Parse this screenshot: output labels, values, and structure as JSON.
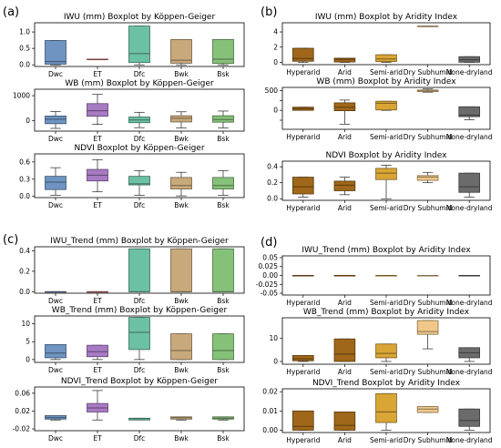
{
  "panel_labels": [
    "(a)",
    "(b)",
    "(c)",
    "(d)"
  ],
  "chart_data": [
    {
      "type": "box",
      "panel": "a",
      "title": "IWU (mm) Boxplot by Köppen-Geiger",
      "categories": [
        "Dwc",
        "ET",
        "Dfc",
        "Bwk",
        "Bsk"
      ],
      "colors": [
        "#6f94c1",
        "#e07272",
        "#6cc0a4",
        "#c8a97c",
        "#86c17a"
      ],
      "ylim": [
        -0.05,
        1.28
      ],
      "yticks": [
        0.0,
        0.5,
        1.0
      ],
      "tick_labels": [
        "0.0",
        "0.5",
        "1.0"
      ],
      "boxes": [
        {
          "min": 0,
          "q1": 0.02,
          "median": 0.1,
          "q3": 0.74,
          "max": 0.74
        },
        {
          "min": 0.17,
          "q1": 0.17,
          "median": 0.17,
          "q3": 0.17,
          "max": 0.17
        },
        {
          "min": 0,
          "q1": 0.07,
          "median": 0.34,
          "q3": 1.18,
          "max": 1.18
        },
        {
          "min": 0,
          "q1": 0.05,
          "median": 0.14,
          "q3": 0.77,
          "max": 0.77
        },
        {
          "min": 0,
          "q1": 0.04,
          "median": 0.17,
          "q3": 0.77,
          "max": 0.77
        }
      ]
    },
    {
      "type": "box",
      "panel": "a",
      "title": "WB (mm) Boxplot by Köppen-Geiger",
      "categories": [
        "Dwc",
        "ET",
        "Dfc",
        "Bwk",
        "Bsk"
      ],
      "colors": [
        "#6f94c1",
        "#a87ac4",
        "#6cc0a4",
        "#c8a97c",
        "#86c17a"
      ],
      "ylim": [
        -430,
        1260
      ],
      "yticks": [
        0,
        1000
      ],
      "tick_labels": [
        "0",
        "1000"
      ],
      "boxes": [
        {
          "min": -320,
          "q1": -130,
          "median": 50,
          "q3": 180,
          "max": 360
        },
        {
          "min": -160,
          "q1": 170,
          "median": 390,
          "q3": 680,
          "max": 1050
        },
        {
          "min": -290,
          "q1": -90,
          "median": 20,
          "q3": 140,
          "max": 330
        },
        {
          "min": -300,
          "q1": -60,
          "median": 90,
          "q3": 190,
          "max": 350
        },
        {
          "min": -300,
          "q1": -70,
          "median": 40,
          "q3": 190,
          "max": 380
        }
      ]
    },
    {
      "type": "box",
      "panel": "a",
      "title": "NDVI Boxplot by Köppen-Geiger",
      "categories": [
        "Dwc",
        "ET",
        "Dfc",
        "Bwk",
        "Bsk"
      ],
      "colors": [
        "#6f94c1",
        "#a87ac4",
        "#6cc0a4",
        "#c8a97c",
        "#86c17a"
      ],
      "ylim": [
        -0.02,
        0.74
      ],
      "yticks": [
        0.0,
        0.3,
        0.6
      ],
      "tick_labels": [
        "0.0",
        "0.3",
        "0.6"
      ],
      "boxes": [
        {
          "min": 0.02,
          "q1": 0.12,
          "median": 0.25,
          "q3": 0.35,
          "max": 0.5
        },
        {
          "min": 0.08,
          "q1": 0.27,
          "median": 0.37,
          "q3": 0.47,
          "max": 0.64
        },
        {
          "min": 0.02,
          "q1": 0.2,
          "median": 0.22,
          "q3": 0.35,
          "max": 0.45
        },
        {
          "min": 0.01,
          "q1": 0.13,
          "median": 0.19,
          "q3": 0.33,
          "max": 0.42
        },
        {
          "min": 0.02,
          "q1": 0.13,
          "median": 0.19,
          "q3": 0.33,
          "max": 0.45
        }
      ]
    },
    {
      "type": "box",
      "panel": "b",
      "title": "IWU (mm) Boxplot by Aridity Index",
      "categories": [
        "Hyperarid",
        "Arid",
        "Semi-arid",
        "Dry Subhumid",
        "None-dryland"
      ],
      "colors": [
        "#a0671a",
        "#a0671a",
        "#d9a535",
        "#f0c98a",
        "#6b6b6b"
      ],
      "ylim": [
        -0.3,
        5.2
      ],
      "yticks": [
        0,
        2,
        4
      ],
      "tick_labels": [
        "0",
        "2",
        "4"
      ],
      "boxes": [
        {
          "min": 0,
          "q1": 0.15,
          "median": 0.5,
          "q3": 1.85,
          "max": 1.85
        },
        {
          "min": 0,
          "q1": 0.05,
          "median": 0.4,
          "q3": 0.55,
          "max": 0.55
        },
        {
          "min": 0,
          "q1": 0.1,
          "median": 0.45,
          "q3": 1.0,
          "max": 1.0
        },
        {
          "min": 4.75,
          "q1": 4.75,
          "median": 4.75,
          "q3": 4.75,
          "max": 4.75
        },
        {
          "min": 0,
          "q1": 0.02,
          "median": 0.35,
          "q3": 0.75,
          "max": 0.75
        }
      ]
    },
    {
      "type": "box",
      "panel": "b",
      "title": "WB (mm) Boxplot by Aridity Index",
      "categories": [
        "Hyperarid",
        "Arid",
        "Semi-arid",
        "Dry Subhumid",
        "None-dryland"
      ],
      "colors": [
        "#a0671a",
        "#a0671a",
        "#d9a535",
        "#f0c98a",
        "#6b6b6b"
      ],
      "ylim": [
        -480,
        580
      ],
      "yticks": [
        -250,
        0,
        250,
        500
      ],
      "tick_labels": [
        "",
        "0",
        "",
        "500"
      ],
      "boxes": [
        {
          "min": 0,
          "q1": 0,
          "median": 40,
          "q3": 80,
          "max": 80
        },
        {
          "min": -350,
          "q1": -10,
          "median": 80,
          "q3": 190,
          "max": 260
        },
        {
          "min": 0,
          "q1": 10,
          "median": 180,
          "q3": 230,
          "max": 230
        },
        {
          "min": 460,
          "q1": 475,
          "median": 495,
          "q3": 515,
          "max": 540
        },
        {
          "min": -240,
          "q1": -160,
          "median": -120,
          "q3": 90,
          "max": 90
        }
      ]
    },
    {
      "type": "box",
      "panel": "b",
      "title": "NDVI Boxplot by Aridity Index",
      "categories": [
        "Hyperarid",
        "Arid",
        "Semi-arid",
        "Dry Subhumid",
        "None-dryland"
      ],
      "colors": [
        "#a0671a",
        "#a0671a",
        "#d9a535",
        "#f0c98a",
        "#6b6b6b"
      ],
      "ylim": [
        -0.02,
        0.47
      ],
      "yticks": [
        0.0,
        0.2,
        0.4
      ],
      "tick_labels": [
        "0.0",
        "0.2",
        "0.4"
      ],
      "boxes": [
        {
          "min": 0.02,
          "q1": 0.06,
          "median": 0.15,
          "q3": 0.27,
          "max": 0.27
        },
        {
          "min": 0.05,
          "q1": 0.1,
          "median": 0.17,
          "q3": 0.22,
          "max": 0.27
        },
        {
          "min": 0.0,
          "q1": 0.24,
          "median": 0.32,
          "q3": 0.38,
          "max": 0.42
        },
        {
          "min": 0.2,
          "q1": 0.23,
          "median": 0.27,
          "q3": 0.29,
          "max": 0.33
        },
        {
          "min": 0.02,
          "q1": 0.08,
          "median": 0.15,
          "q3": 0.32,
          "max": 0.32
        }
      ]
    },
    {
      "type": "box",
      "panel": "c",
      "title": "IWU_Trend (mm) Boxplot by Köppen-Geiger",
      "categories": [
        "Dwc",
        "ET",
        "Dfc",
        "Bwk",
        "Bsk"
      ],
      "colors": [
        "#6f94c1",
        "#e07272",
        "#6cc0a4",
        "#c8a97c",
        "#86c17a"
      ],
      "ylim": [
        -0.015,
        0.44
      ],
      "yticks": [
        0.0,
        0.2,
        0.4
      ],
      "tick_labels": [
        "0.0",
        "0.2",
        "0.4"
      ],
      "boxes": [
        {
          "min": 0,
          "q1": 0,
          "median": 0,
          "q3": 0,
          "max": 0
        },
        {
          "min": 0,
          "q1": 0,
          "median": 0,
          "q3": 0,
          "max": 0
        },
        {
          "min": 0,
          "q1": 0,
          "median": 0,
          "q3": 0.42,
          "max": 0.42
        },
        {
          "min": 0,
          "q1": 0,
          "median": 0,
          "q3": 0.42,
          "max": 0.42
        },
        {
          "min": 0,
          "q1": 0,
          "median": 0,
          "q3": 0.42,
          "max": 0.42
        }
      ]
    },
    {
      "type": "box",
      "panel": "c",
      "title": "WB_Trend (mm) Boxplot by Köppen-Geiger",
      "categories": [
        "Dwc",
        "ET",
        "Dfc",
        "Bwk",
        "Bsk"
      ],
      "colors": [
        "#6f94c1",
        "#a87ac4",
        "#6cc0a4",
        "#c8a97c",
        "#86c17a"
      ],
      "ylim": [
        -0.8,
        12.2
      ],
      "yticks": [
        0,
        5,
        10
      ],
      "tick_labels": [
        "0",
        "5",
        "10"
      ],
      "boxes": [
        {
          "min": 0,
          "q1": 0.5,
          "median": 1.8,
          "q3": 4.2,
          "max": 4.2
        },
        {
          "min": 0,
          "q1": 0.8,
          "median": 2.2,
          "q3": 4.0,
          "max": 4.0
        },
        {
          "min": 0,
          "q1": 2.8,
          "median": 7.6,
          "q3": 11.8,
          "max": 11.8
        },
        {
          "min": 0,
          "q1": 0,
          "median": 2.5,
          "q3": 7.2,
          "max": 7.2
        },
        {
          "min": 0,
          "q1": 0,
          "median": 2.5,
          "q3": 7.2,
          "max": 7.2
        }
      ]
    },
    {
      "type": "box",
      "panel": "c",
      "title": "NDVI_Trend Boxplot by Köppen-Geiger",
      "categories": [
        "Dwc",
        "ET",
        "Dfc",
        "Bwk",
        "Bsk"
      ],
      "colors": [
        "#6f94c1",
        "#a87ac4",
        "#6cc0a4",
        "#c8a97c",
        "#86c17a"
      ],
      "ylim": [
        -0.024,
        0.074
      ],
      "yticks": [
        -0.02,
        0.02,
        0.06
      ],
      "tick_labels": [
        "-0.02",
        "0.02",
        "0.06"
      ],
      "boxes": [
        {
          "min": 0.0,
          "q1": 0.002,
          "median": 0.005,
          "q3": 0.01,
          "max": 0.01
        },
        {
          "min": 0.0,
          "q1": 0.018,
          "median": 0.027,
          "q3": 0.037,
          "max": 0.066
        },
        {
          "min": 0.0,
          "q1": 0.0,
          "median": 0.003,
          "q3": 0.004,
          "max": 0.004
        },
        {
          "min": 0.0,
          "q1": 0.002,
          "median": 0.005,
          "q3": 0.007,
          "max": 0.007
        },
        {
          "min": 0.0,
          "q1": 0.002,
          "median": 0.004,
          "q3": 0.007,
          "max": 0.007
        }
      ]
    },
    {
      "type": "box",
      "panel": "d",
      "title": "IWU_Trend (mm) Boxplot by Aridity Index",
      "categories": [
        "Hyperarid",
        "Arid",
        "Semi-arid",
        "Dry Subhumid",
        "None-dryland"
      ],
      "colors": [
        "#a0671a",
        "#a0671a",
        "#d9a535",
        "#f0c98a",
        "#6b6b6b"
      ],
      "ylim": [
        -0.055,
        0.055
      ],
      "yticks": [
        -0.05,
        -0.025,
        0.0,
        0.025,
        0.05
      ],
      "tick_labels": [
        "-0.05",
        "-0.025",
        "0.00",
        "0.025",
        "0.05"
      ],
      "boxes": [
        {
          "min": 0,
          "q1": 0,
          "median": 0,
          "q3": 0,
          "max": 0
        },
        {
          "min": 0,
          "q1": 0,
          "median": 0,
          "q3": 0,
          "max": 0
        },
        {
          "min": 0,
          "q1": 0,
          "median": 0,
          "q3": 0,
          "max": 0
        },
        {
          "min": 0,
          "q1": 0,
          "median": 0,
          "q3": 0,
          "max": 0
        },
        {
          "min": 0,
          "q1": 0,
          "median": 0,
          "q3": 0,
          "max": 0
        }
      ]
    },
    {
      "type": "box",
      "panel": "d",
      "title": "WB_Trend (mm) Boxplot by Aridity Index",
      "categories": [
        "Hyperarid",
        "Arid",
        "Semi-arid",
        "Dry Subhumid",
        "None-dryland"
      ],
      "colors": [
        "#a0671a",
        "#a0671a",
        "#d9a535",
        "#f0c98a",
        "#6b6b6b"
      ],
      "ylim": [
        -1.2,
        19.0
      ],
      "yticks": [
        0,
        10
      ],
      "tick_labels": [
        "0",
        "10"
      ],
      "boxes": [
        {
          "min": 0,
          "q1": 0.3,
          "median": 1.2,
          "q3": 2.6,
          "max": 2.6
        },
        {
          "min": 0,
          "q1": 0,
          "median": 3.2,
          "q3": 9.8,
          "max": 9.8
        },
        {
          "min": 0,
          "q1": 1.6,
          "median": 3.5,
          "q3": 7.6,
          "max": 7.6
        },
        {
          "min": 5.5,
          "q1": 11.8,
          "median": 13.0,
          "q3": 17.8,
          "max": 17.8
        },
        {
          "min": 0,
          "q1": 1.6,
          "median": 3.8,
          "q3": 6.0,
          "max": 6.0
        }
      ]
    },
    {
      "type": "box",
      "panel": "d",
      "title": "NDVI_Trend Boxplot by Aridity Index",
      "categories": [
        "Hyperarid",
        "Arid",
        "Semi-arid",
        "Dry Subhumid",
        "None-dryland"
      ],
      "colors": [
        "#a0671a",
        "#a0671a",
        "#d9a535",
        "#f0c98a",
        "#6b6b6b"
      ],
      "ylim": [
        -0.0012,
        0.0215
      ],
      "yticks": [
        0.0,
        0.01,
        0.02
      ],
      "tick_labels": [
        "0.00",
        "0.01",
        "0.02"
      ],
      "boxes": [
        {
          "min": 0,
          "q1": 0,
          "median": 0.002,
          "q3": 0.01,
          "max": 0.01
        },
        {
          "min": 0,
          "q1": 0,
          "median": 0.0025,
          "q3": 0.0095,
          "max": 0.0095
        },
        {
          "min": 0,
          "q1": 0.004,
          "median": 0.0095,
          "q3": 0.019,
          "max": 0.019
        },
        {
          "min": 0.0092,
          "q1": 0.0092,
          "median": 0.011,
          "q3": 0.0123,
          "max": 0.0123
        },
        {
          "min": 0,
          "q1": 0.002,
          "median": 0.005,
          "q3": 0.011,
          "max": 0.011
        }
      ]
    }
  ]
}
